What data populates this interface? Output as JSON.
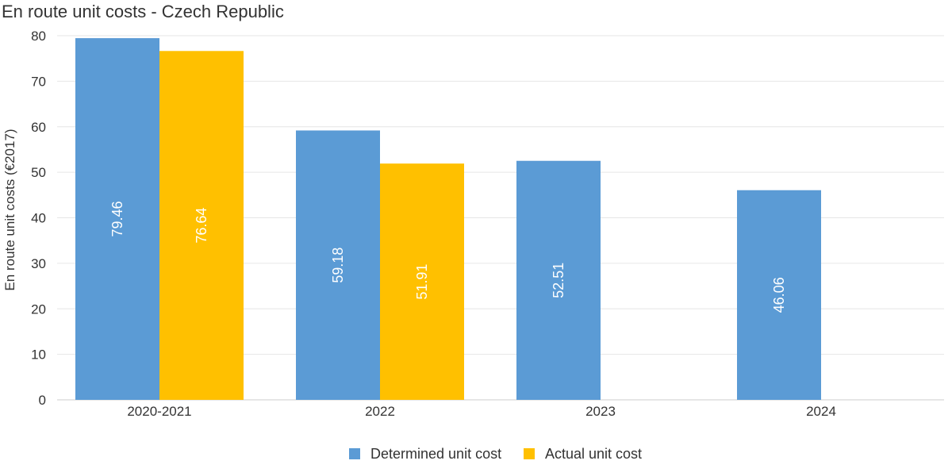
{
  "chart_data": {
    "type": "bar",
    "title": "En route unit costs - Czech Republic",
    "xlabel": "",
    "ylabel": "En route unit costs (€2017)",
    "ylim": [
      0,
      80
    ],
    "yticks": [
      0,
      10,
      20,
      30,
      40,
      50,
      60,
      70,
      80
    ],
    "categories": [
      "2020-2021",
      "2022",
      "2023",
      "2024"
    ],
    "series": [
      {
        "name": "Determined unit cost",
        "color": "#5b9bd5",
        "values": [
          79.46,
          59.18,
          52.51,
          46.06
        ],
        "labels": [
          "79.46",
          "59.18",
          "52.51",
          "46.06"
        ]
      },
      {
        "name": "Actual unit cost",
        "color": "#ffc000",
        "values": [
          76.64,
          51.91,
          null,
          null
        ],
        "labels": [
          "76.64",
          "51.91",
          "",
          ""
        ]
      }
    ],
    "grid": true,
    "legend_position": "bottom-center"
  }
}
